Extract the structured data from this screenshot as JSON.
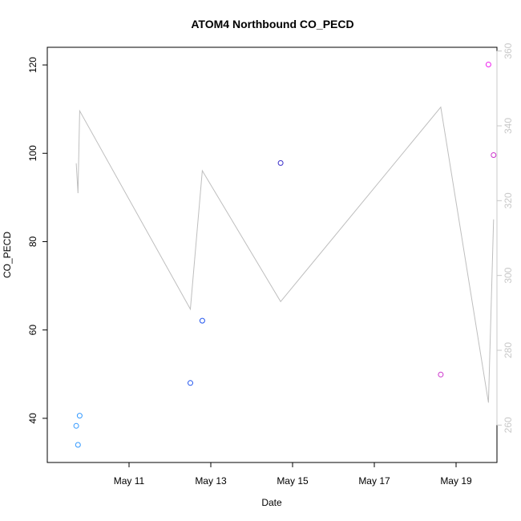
{
  "chart_data": {
    "type": "scatter",
    "title": "ATOM4 Northbound CO_PECD",
    "xlabel": "Date",
    "ylabel": "CO_PECD",
    "x_axis": {
      "type": "date",
      "range": [
        "2023-05-09",
        "2023-05-20"
      ],
      "ticks": [
        {
          "value": "2023-05-11",
          "label": "May 11"
        },
        {
          "value": "2023-05-13",
          "label": "May 13"
        },
        {
          "value": "2023-05-15",
          "label": "May 15"
        },
        {
          "value": "2023-05-17",
          "label": "May 17"
        },
        {
          "value": "2023-05-19",
          "label": "May 19"
        }
      ]
    },
    "y_axis_left": {
      "range": [
        30,
        124
      ],
      "ticks": [
        40,
        60,
        80,
        100,
        120
      ]
    },
    "y_axis_right": {
      "range": [
        250,
        361
      ],
      "ticks": [
        260,
        280,
        300,
        320,
        340,
        360
      ],
      "color": "#c8c8c8"
    },
    "grid": false,
    "points": [
      {
        "x": "2023-05-09T17:00",
        "y": 38.3,
        "color": "#3399ff"
      },
      {
        "x": "2023-05-09T18:00",
        "y": 34.0,
        "color": "#3399ff"
      },
      {
        "x": "2023-05-09T19:00",
        "y": 40.6,
        "color": "#3399ff"
      },
      {
        "x": "2023-05-12T12:00",
        "y": 48.0,
        "color": "#2255ee"
      },
      {
        "x": "2023-05-12T19:00",
        "y": 62.1,
        "color": "#2255ee"
      },
      {
        "x": "2023-05-14T17:00",
        "y": 97.8,
        "color": "#3a2ec9"
      },
      {
        "x": "2023-05-18T15:00",
        "y": 49.9,
        "color": "#cc33cc"
      },
      {
        "x": "2023-05-19T19:00",
        "y": 120.1,
        "color": "#ee22ee"
      },
      {
        "x": "2023-05-19T22:00",
        "y": 99.6,
        "color": "#cc33cc"
      }
    ],
    "line_series": {
      "axis": "right",
      "color": "#bebebe",
      "points": [
        {
          "x": "2023-05-09T17:00",
          "y": 330
        },
        {
          "x": "2023-05-09T18:00",
          "y": 322
        },
        {
          "x": "2023-05-09T19:00",
          "y": 344
        },
        {
          "x": "2023-05-12T12:00",
          "y": 291
        },
        {
          "x": "2023-05-12T19:00",
          "y": 328
        },
        {
          "x": "2023-05-14T17:00",
          "y": 293
        },
        {
          "x": "2023-05-18T15:00",
          "y": 345
        },
        {
          "x": "2023-05-19T19:00",
          "y": 266
        },
        {
          "x": "2023-05-19T22:00",
          "y": 315
        }
      ]
    }
  }
}
